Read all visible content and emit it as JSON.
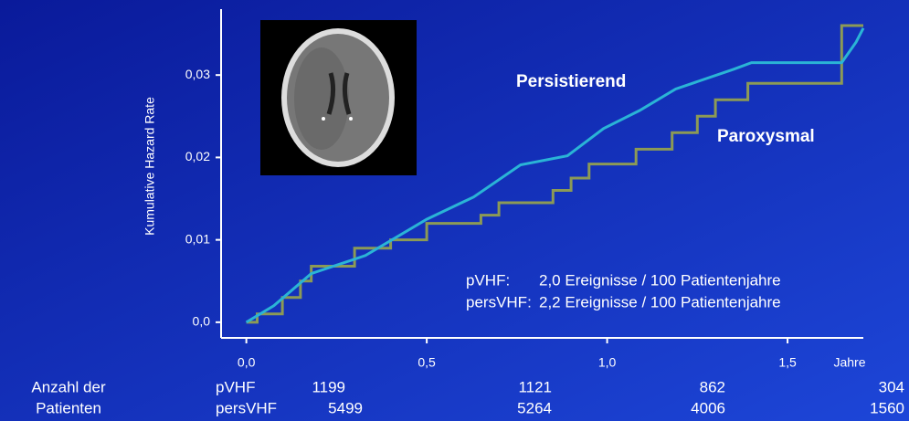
{
  "chart_data": {
    "type": "line",
    "y_label": "Kumulative Hazard Rate",
    "x_unit_label": "Jahre",
    "xlim": [
      -0.07,
      1.71
    ],
    "ylim": [
      -0.0019,
      0.038
    ],
    "xticks": [
      {
        "value": 0,
        "label": "0,0"
      },
      {
        "value": 0.5,
        "label": "0,5"
      },
      {
        "value": 1,
        "label": "1,0"
      },
      {
        "value": 1.5,
        "label": "1,5"
      }
    ],
    "yticks": [
      {
        "value": 0,
        "label": "0,0"
      },
      {
        "value": 0.01,
        "label": "0,01"
      },
      {
        "value": 0.02,
        "label": "0,02"
      },
      {
        "value": 0.03,
        "label": "0,03"
      }
    ],
    "annotations": [
      "Persistierend",
      "Paroxysmal"
    ],
    "info": [
      [
        "pVHF:",
        "2,0 Ereignisse / 100 Patientenjahre"
      ],
      [
        "persVHF:",
        "2,2 Ereignisse / 100 Patientenjahre"
      ]
    ],
    "series": [
      {
        "name": "Paroxysmal",
        "color": "#8c9a55",
        "x": [
          0,
          0.03,
          0.03,
          0.1,
          0.1,
          0.15,
          0.15,
          0.18,
          0.18,
          0.3,
          0.3,
          0.4,
          0.4,
          0.5,
          0.5,
          0.65,
          0.65,
          0.7,
          0.7,
          0.85,
          0.85,
          0.9,
          0.9,
          0.95,
          0.95,
          1.08,
          1.08,
          1.18,
          1.18,
          1.25,
          1.25,
          1.3,
          1.3,
          1.39,
          1.39,
          1.65,
          1.65,
          1.71
        ],
        "values": [
          0,
          0,
          0.001,
          0.001,
          0.003,
          0.003,
          0.005,
          0.005,
          0.0068,
          0.0068,
          0.009,
          0.009,
          0.01,
          0.01,
          0.012,
          0.012,
          0.013,
          0.013,
          0.0145,
          0.0145,
          0.016,
          0.016,
          0.0175,
          0.0175,
          0.0192,
          0.0192,
          0.021,
          0.021,
          0.023,
          0.023,
          0.025,
          0.025,
          0.027,
          0.027,
          0.029,
          0.029,
          0.036,
          0.036
        ]
      },
      {
        "name": "Persistierend",
        "color": "#2ab4d6",
        "x": [
          0,
          0.076,
          0.18,
          0.33,
          0.5,
          0.63,
          0.76,
          0.89,
          0.99,
          1.09,
          1.19,
          1.35,
          1.4,
          1.65,
          1.69,
          1.71
        ],
        "values": [
          0,
          0.002,
          0.0059,
          0.0081,
          0.0125,
          0.0152,
          0.0191,
          0.0202,
          0.0235,
          0.0257,
          0.0283,
          0.0307,
          0.0315,
          0.0315,
          0.034,
          0.0357
        ]
      }
    ]
  },
  "table": {
    "header": [
      "Anzahl der",
      "Patienten"
    ],
    "rows": [
      {
        "name": "pVHF",
        "values": [
          1199,
          1121,
          862,
          304
        ]
      },
      {
        "name": "persVHF",
        "values": [
          5499,
          5264,
          4006,
          1560
        ]
      }
    ]
  }
}
